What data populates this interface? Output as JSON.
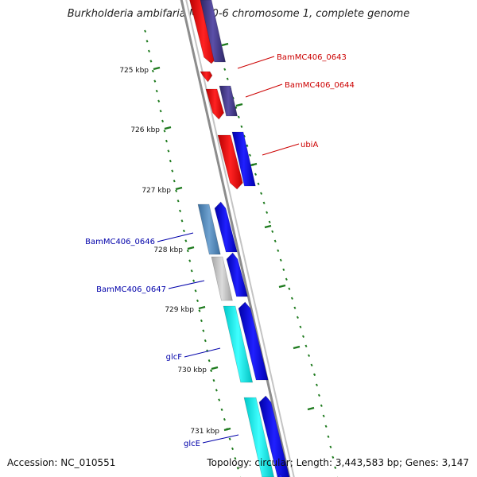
{
  "header": {
    "title": "Burkholderia ambifaria MC40-6 chromosome 1, complete genome"
  },
  "footer": {
    "accession": "Accession: NC_010551",
    "summary": "Topology: circular; Length: 3,443,583 bp; Genes: 3,147"
  },
  "scale": {
    "ticks": [
      {
        "label": "725 kbp",
        "kbp": 725
      },
      {
        "label": "726 kbp",
        "kbp": 726
      },
      {
        "label": "727 kbp",
        "kbp": 727
      },
      {
        "label": "728 kbp",
        "kbp": 728
      },
      {
        "label": "729 kbp",
        "kbp": 729
      },
      {
        "label": "730 kbp",
        "kbp": 730
      },
      {
        "label": "731 kbp",
        "kbp": 731
      }
    ]
  },
  "genes": {
    "reverse": [
      {
        "label": "BamMC406_0643",
        "color": "#cc0000"
      },
      {
        "label": "BamMC406_0644",
        "color": "#cc0000"
      },
      {
        "label": "ubiA",
        "color": "#cc0000"
      }
    ],
    "forward": [
      {
        "label": "BamMC406_0646",
        "color": "#0000aa"
      },
      {
        "label": "BamMC406_0647",
        "color": "#0000aa"
      },
      {
        "label": "glcF",
        "color": "#0000aa"
      },
      {
        "label": "glcE",
        "color": "#0000aa"
      }
    ]
  },
  "colors": {
    "cog_red": "#ff1111",
    "cds_blue": "#1010ee",
    "cds_navy": "#4a3f8f",
    "cog_cyan": "#22f0f0",
    "cog_steel": "#5a8fc0",
    "cog_gray": "#bdbdbd",
    "backbone": "#8a8a8a",
    "tick_green": "#1d7a1d"
  }
}
